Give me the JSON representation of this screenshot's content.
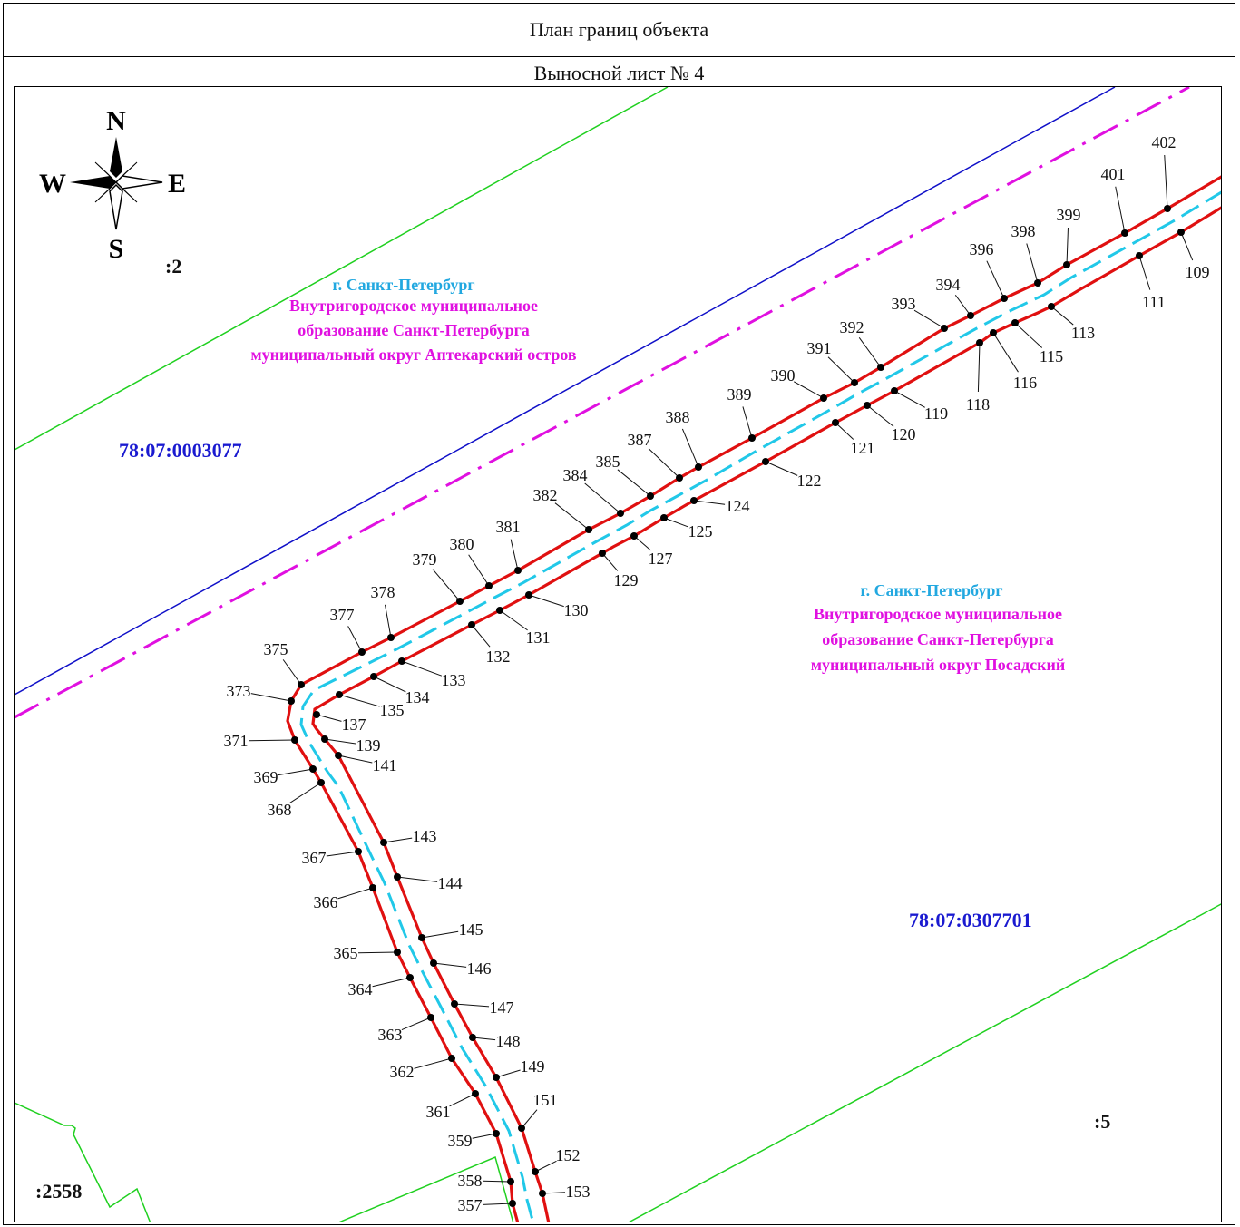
{
  "header": {
    "title": "План границ объекта",
    "sheet": "Выносной лист № 4"
  },
  "compass": {
    "n": "N",
    "s": "S",
    "e": "E",
    "w": "W"
  },
  "quarters": {
    "north_cad": "78:07:0003077",
    "south_cad": "78:07:0307701",
    "parcel_2": ":2",
    "parcel_5": ":5",
    "parcel_2558": ":2558"
  },
  "districts": {
    "north": {
      "city": "г. Санкт-Петербург",
      "line1": "Внутригородское муниципальное",
      "line2": "образование Санкт-Петербурга",
      "line3": "муниципальный округ Аптекарский остров"
    },
    "south": {
      "city": "г. Санкт-Петербург",
      "line1": "Внутригородское муниципальное",
      "line2": "образование Санкт-Петербурга",
      "line3": "муниципальный округ Посадский"
    }
  },
  "colors": {
    "boundary": "#e01010",
    "axis": "#21c8e8",
    "district_line": "#e010e0",
    "quarter_line": "#1010c8",
    "parcel_line": "#20d020",
    "cad_label": "#1a1ad0",
    "city_label": "#22a8e0",
    "district_label": "#e010e0"
  },
  "points": [
    {
      "n": "402",
      "p": [
        1286,
        229
      ],
      "l": [
        1282,
        156
      ]
    },
    {
      "n": "401",
      "p": [
        1239,
        256
      ],
      "l": [
        1226,
        191
      ]
    },
    {
      "n": "399",
      "p": [
        1175,
        291
      ],
      "l": [
        1177,
        236
      ]
    },
    {
      "n": "398",
      "p": [
        1143,
        311
      ],
      "l": [
        1127,
        254
      ]
    },
    {
      "n": "396",
      "p": [
        1106,
        328
      ],
      "l": [
        1081,
        274
      ]
    },
    {
      "n": "394",
      "p": [
        1069,
        347
      ],
      "l": [
        1044,
        313
      ]
    },
    {
      "n": "393",
      "p": [
        1040,
        361
      ],
      "l": [
        995,
        334
      ]
    },
    {
      "n": "392",
      "p": [
        970,
        404
      ],
      "l": [
        938,
        360
      ]
    },
    {
      "n": "391",
      "p": [
        941,
        421
      ],
      "l": [
        902,
        383
      ]
    },
    {
      "n": "390",
      "p": [
        907,
        438
      ],
      "l": [
        862,
        413
      ]
    },
    {
      "n": "389",
      "p": [
        828,
        482
      ],
      "l": [
        814,
        434
      ]
    },
    {
      "n": "388",
      "p": [
        769,
        514
      ],
      "l": [
        746,
        459
      ]
    },
    {
      "n": "387",
      "p": [
        748,
        526
      ],
      "l": [
        704,
        484
      ]
    },
    {
      "n": "385",
      "p": [
        716,
        546
      ],
      "l": [
        669,
        508
      ]
    },
    {
      "n": "384",
      "p": [
        683,
        565
      ],
      "l": [
        633,
        523
      ]
    },
    {
      "n": "382",
      "p": [
        648,
        583
      ],
      "l": [
        600,
        545
      ]
    },
    {
      "n": "381",
      "p": [
        570,
        628
      ],
      "l": [
        559,
        580
      ]
    },
    {
      "n": "380",
      "p": [
        538,
        645
      ],
      "l": [
        508,
        599
      ]
    },
    {
      "n": "379",
      "p": [
        506,
        662
      ],
      "l": [
        467,
        616
      ]
    },
    {
      "n": "378",
      "p": [
        430,
        702
      ],
      "l": [
        421,
        652
      ]
    },
    {
      "n": "377",
      "p": [
        398,
        718
      ],
      "l": [
        376,
        677
      ]
    },
    {
      "n": "375",
      "p": [
        331,
        754
      ],
      "l": [
        303,
        715
      ]
    },
    {
      "n": "373",
      "p": [
        320,
        772
      ],
      "l": [
        262,
        761
      ]
    },
    {
      "n": "371",
      "p": [
        324,
        815
      ],
      "l": [
        259,
        816
      ]
    },
    {
      "n": "369",
      "p": [
        344,
        847
      ],
      "l": [
        292,
        856
      ]
    },
    {
      "n": "368",
      "p": [
        353,
        862
      ],
      "l": [
        307,
        892
      ]
    },
    {
      "n": "367",
      "p": [
        394,
        938
      ],
      "l": [
        345,
        945
      ]
    },
    {
      "n": "366",
      "p": [
        410,
        978
      ],
      "l": [
        358,
        994
      ]
    },
    {
      "n": "365",
      "p": [
        437,
        1049
      ],
      "l": [
        380,
        1050
      ]
    },
    {
      "n": "364",
      "p": [
        451,
        1077
      ],
      "l": [
        396,
        1090
      ]
    },
    {
      "n": "363",
      "p": [
        474,
        1121
      ],
      "l": [
        429,
        1140
      ]
    },
    {
      "n": "362",
      "p": [
        497,
        1166
      ],
      "l": [
        442,
        1181
      ]
    },
    {
      "n": "361",
      "p": [
        523,
        1205
      ],
      "l": [
        482,
        1225
      ]
    },
    {
      "n": "359",
      "p": [
        546,
        1249
      ],
      "l": [
        506,
        1257
      ]
    },
    {
      "n": "358",
      "p": [
        562,
        1302
      ],
      "l": [
        517,
        1301
      ]
    },
    {
      "n": "357",
      "p": [
        564,
        1326
      ],
      "l": [
        517,
        1328
      ]
    },
    {
      "n": "109",
      "p": [
        1301,
        255
      ],
      "l": [
        1319,
        299
      ]
    },
    {
      "n": "111",
      "p": [
        1255,
        281
      ],
      "l": [
        1271,
        332
      ]
    },
    {
      "n": "113",
      "p": [
        1158,
        337
      ],
      "l": [
        1193,
        366
      ]
    },
    {
      "n": "115",
      "p": [
        1118,
        355
      ],
      "l": [
        1158,
        392
      ]
    },
    {
      "n": "116",
      "p": [
        1094,
        366
      ],
      "l": [
        1129,
        421
      ]
    },
    {
      "n": "118",
      "p": [
        1079,
        377
      ],
      "l": [
        1077,
        445
      ]
    },
    {
      "n": "119",
      "p": [
        985,
        430
      ],
      "l": [
        1031,
        455
      ]
    },
    {
      "n": "120",
      "p": [
        955,
        446
      ],
      "l": [
        995,
        478
      ]
    },
    {
      "n": "121",
      "p": [
        920,
        465
      ],
      "l": [
        950,
        493
      ]
    },
    {
      "n": "122",
      "p": [
        843,
        508
      ],
      "l": [
        891,
        529
      ]
    },
    {
      "n": "124",
      "p": [
        764,
        551
      ],
      "l": [
        812,
        557
      ]
    },
    {
      "n": "125",
      "p": [
        731,
        570
      ],
      "l": [
        771,
        585
      ]
    },
    {
      "n": "127",
      "p": [
        698,
        590
      ],
      "l": [
        727,
        615
      ]
    },
    {
      "n": "129",
      "p": [
        663,
        609
      ],
      "l": [
        689,
        639
      ]
    },
    {
      "n": "130",
      "p": [
        582,
        655
      ],
      "l": [
        634,
        672
      ]
    },
    {
      "n": "131",
      "p": [
        550,
        672
      ],
      "l": [
        592,
        702
      ]
    },
    {
      "n": "132",
      "p": [
        519,
        688
      ],
      "l": [
        548,
        723
      ]
    },
    {
      "n": "133",
      "p": [
        442,
        728
      ],
      "l": [
        499,
        749
      ]
    },
    {
      "n": "134",
      "p": [
        411,
        745
      ],
      "l": [
        459,
        768
      ]
    },
    {
      "n": "135",
      "p": [
        373,
        765
      ],
      "l": [
        431,
        782
      ]
    },
    {
      "n": "137",
      "p": [
        348,
        787
      ],
      "l": [
        389,
        798
      ]
    },
    {
      "n": "139",
      "p": [
        357,
        814
      ],
      "l": [
        405,
        821
      ]
    },
    {
      "n": "141",
      "p": [
        372,
        832
      ],
      "l": [
        423,
        843
      ]
    },
    {
      "n": "143",
      "p": [
        422,
        928
      ],
      "l": [
        467,
        921
      ]
    },
    {
      "n": "144",
      "p": [
        437,
        966
      ],
      "l": [
        495,
        973
      ]
    },
    {
      "n": "145",
      "p": [
        464,
        1033
      ],
      "l": [
        518,
        1024
      ]
    },
    {
      "n": "146",
      "p": [
        477,
        1061
      ],
      "l": [
        527,
        1067
      ]
    },
    {
      "n": "147",
      "p": [
        500,
        1106
      ],
      "l": [
        552,
        1110
      ]
    },
    {
      "n": "148",
      "p": [
        520,
        1143
      ],
      "l": [
        559,
        1147
      ]
    },
    {
      "n": "149",
      "p": [
        546,
        1187
      ],
      "l": [
        586,
        1175
      ]
    },
    {
      "n": "151",
      "p": [
        574,
        1243
      ],
      "l": [
        600,
        1212
      ]
    },
    {
      "n": "152",
      "p": [
        589,
        1291
      ],
      "l": [
        625,
        1273
      ]
    },
    {
      "n": "153",
      "p": [
        597,
        1315
      ],
      "l": [
        636,
        1313
      ]
    }
  ]
}
